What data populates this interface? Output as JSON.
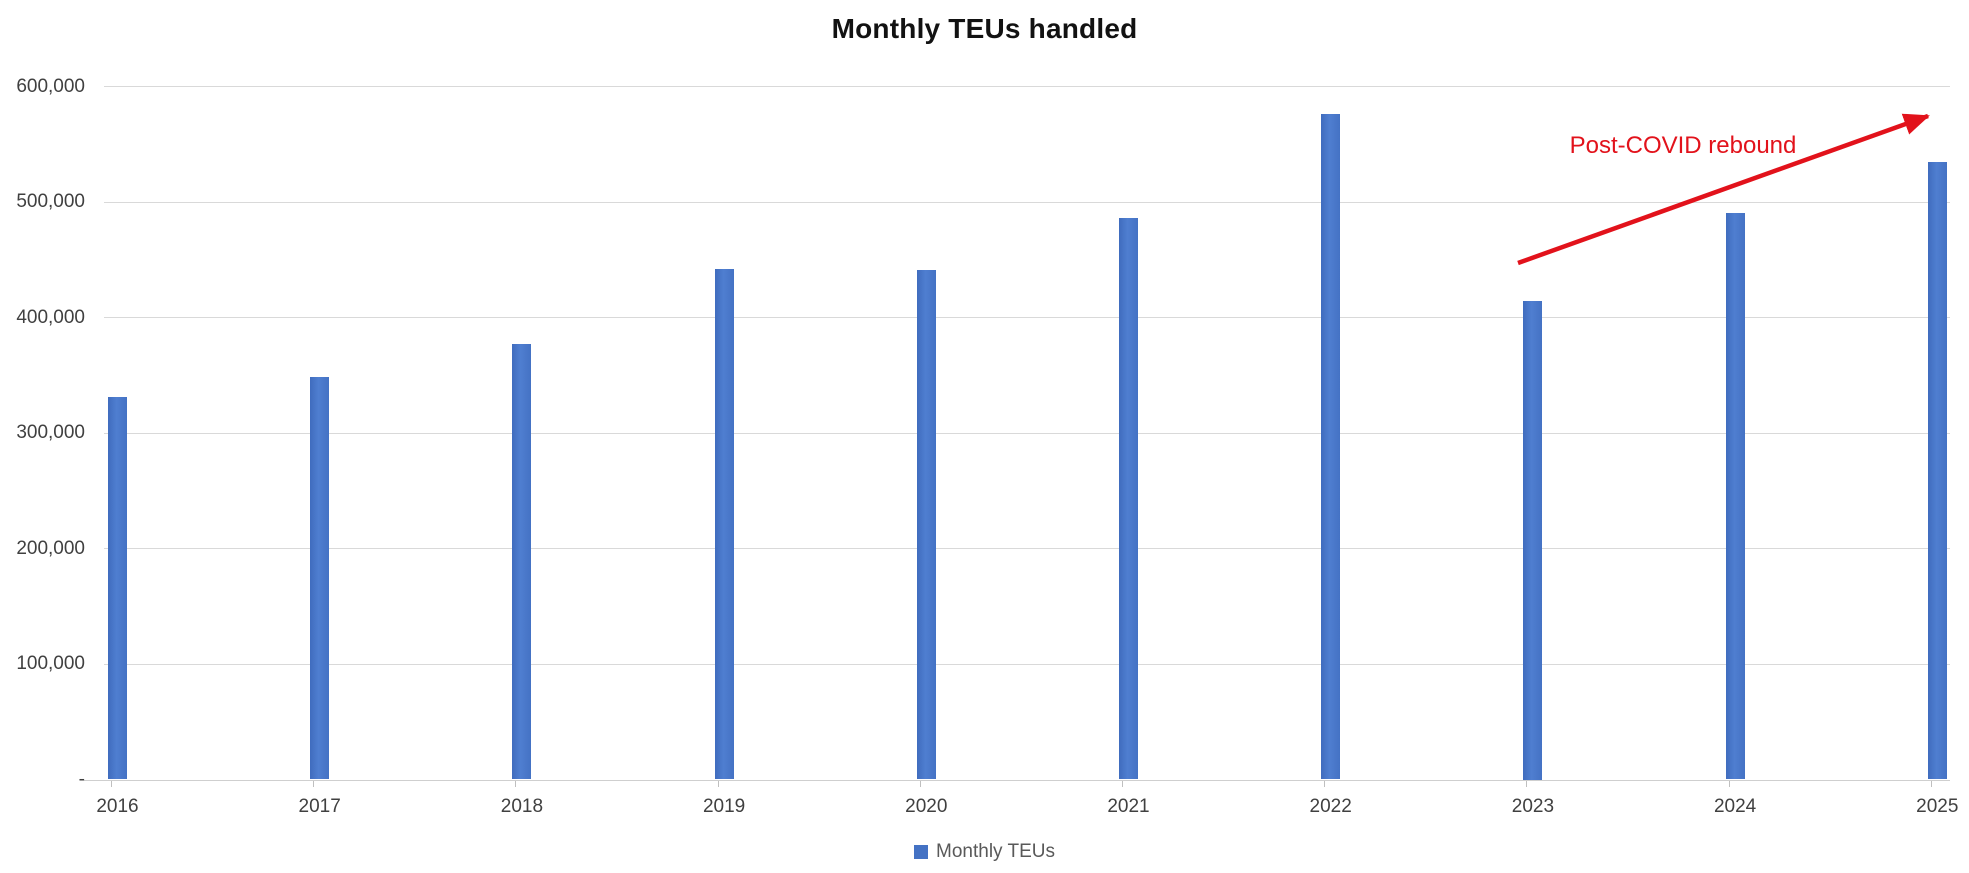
{
  "chart_data": {
    "type": "bar",
    "title": "Monthly TEUs handled",
    "categories": [
      "2016",
      "2017",
      "2018",
      "2019",
      "2020",
      "2021",
      "2022",
      "2023",
      "2024",
      "2025"
    ],
    "series": [
      {
        "name": "Monthly TEUs",
        "values": [
          331000,
          348000,
          377000,
          442000,
          441000,
          486000,
          576000,
          414000,
          490000,
          534000
        ]
      }
    ],
    "xlabel": "",
    "ylabel": "",
    "ylim": [
      0,
      600000
    ],
    "y_tick_interval": 100000,
    "y_ticks": [
      {
        "value": 0,
        "label": "-"
      },
      {
        "value": 100000,
        "label": "100,000"
      },
      {
        "value": 200000,
        "label": "200,000"
      },
      {
        "value": 300000,
        "label": "300,000"
      },
      {
        "value": 400000,
        "label": "400,000"
      },
      {
        "value": 500000,
        "label": "500,000"
      },
      {
        "value": 600000,
        "label": "600,000"
      }
    ],
    "grid": "horizontal-on",
    "legend_position": "bottom-center",
    "legend_label": "Monthly TEUs",
    "annotation": {
      "text": "Post-COVID rebound",
      "color": "#e2121b",
      "arrow": true
    },
    "colors": {
      "bar": "#4472c4",
      "gridline": "#d9d9d9",
      "axis_text": "#404040",
      "legend_text": "#595959",
      "title_text": "#121212"
    }
  }
}
